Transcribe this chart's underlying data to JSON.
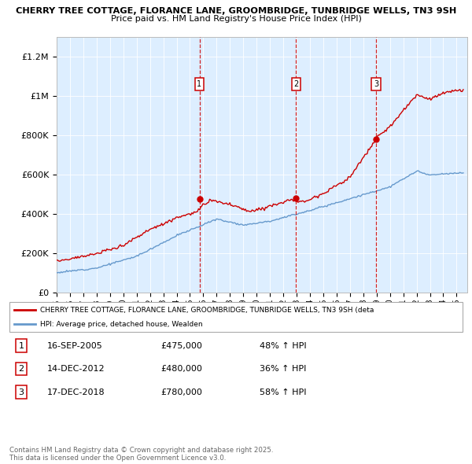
{
  "title": "CHERRY TREE COTTAGE, FLORANCE LANE, GROOMBRIDGE, TUNBRIDGE WELLS, TN3 9SH",
  "subtitle": "Price paid vs. HM Land Registry's House Price Index (HPI)",
  "ylim": [
    0,
    1300000
  ],
  "yticks": [
    0,
    200000,
    400000,
    600000,
    800000,
    1000000,
    1200000
  ],
  "ytick_labels": [
    "£0",
    "£200K",
    "£400K",
    "£600K",
    "£800K",
    "£1M",
    "£1.2M"
  ],
  "xlim_start": 1995.0,
  "xlim_end": 2025.8,
  "plot_bg_color": "#ddeeff",
  "red_color": "#cc0000",
  "blue_color": "#6699cc",
  "sale_dates": [
    2005.71,
    2012.96,
    2018.96
  ],
  "sale_prices": [
    475000,
    480000,
    780000
  ],
  "sale_labels": [
    "1",
    "2",
    "3"
  ],
  "legend_red_label": "CHERRY TREE COTTAGE, FLORANCE LANE, GROOMBRIDGE, TUNBRIDGE WELLS, TN3 9SH (deta",
  "legend_blue_label": "HPI: Average price, detached house, Wealden",
  "transactions": [
    {
      "label": "1",
      "date": "16-SEP-2005",
      "price": "£475,000",
      "hpi": "48% ↑ HPI"
    },
    {
      "label": "2",
      "date": "14-DEC-2012",
      "price": "£480,000",
      "hpi": "36% ↑ HPI"
    },
    {
      "label": "3",
      "date": "17-DEC-2018",
      "price": "£780,000",
      "hpi": "58% ↑ HPI"
    }
  ],
  "footer": "Contains HM Land Registry data © Crown copyright and database right 2025.\nThis data is licensed under the Open Government Licence v3.0."
}
